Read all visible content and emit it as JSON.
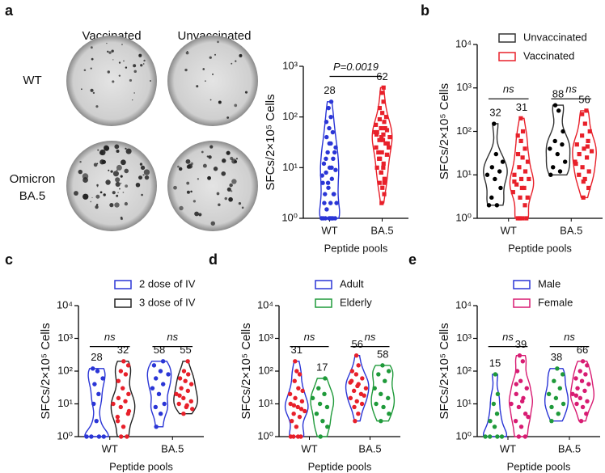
{
  "panel_labels": [
    "a",
    "b",
    "c",
    "d",
    "e"
  ],
  "images": {
    "columns": [
      "Vaccinated",
      "Unvaccinated"
    ],
    "rows": [
      [
        "WT"
      ],
      [
        "Omicron",
        "BA.5"
      ]
    ]
  },
  "chart_data": [
    {
      "type": "violin",
      "y_label": "SFCs/2×10⁵ Cells",
      "x_label": "Peptide pools",
      "categories": [
        "WT",
        "BA.5"
      ],
      "ylim": [
        1,
        1000
      ],
      "log_scale": true,
      "yticks": [
        {
          "value": 1,
          "label": "10⁰"
        },
        {
          "value": 10,
          "label": "10¹"
        },
        {
          "value": 100,
          "label": "10²"
        },
        {
          "value": 1000,
          "label": "10³"
        }
      ],
      "comparison_labels": [
        "P=0.0019"
      ],
      "series": [
        {
          "color": "#2a35d6",
          "point_color": "#2a35d6",
          "marker": "circle",
          "labels": [
            28,
            null
          ],
          "values": [
            [
              1,
              1,
              1,
              1,
              1,
              1,
              1,
              1.5,
              2,
              2,
              3,
              3,
              4,
              5,
              6,
              8,
              9,
              10,
              12,
              15,
              20,
              25,
              30,
              40,
              50,
              60,
              80,
              100,
              150,
              200,
              1,
              2,
              3,
              5,
              7,
              10,
              15,
              20,
              30
            ],
            null
          ]
        },
        {
          "color": "#e8202a",
          "point_color": "#e8202a",
          "marker": "square",
          "labels": [
            null,
            62
          ],
          "values": [
            null,
            [
              2,
              3,
              4,
              5,
              6,
              8,
              10,
              12,
              15,
              18,
              20,
              25,
              30,
              35,
              40,
              45,
              50,
              55,
              60,
              70,
              80,
              90,
              100,
              120,
              150,
              200,
              300,
              380,
              10,
              20,
              30,
              40,
              50,
              60,
              15,
              25,
              35,
              45,
              5,
              8
            ]
          ]
        }
      ]
    },
    {
      "type": "violin",
      "y_label": "SFCs/2×10⁵ Cells",
      "x_label": "Peptide pools",
      "categories": [
        "WT",
        "BA.5"
      ],
      "ylim": [
        1,
        10000
      ],
      "log_scale": true,
      "yticks": [
        {
          "value": 1,
          "label": "10⁰"
        },
        {
          "value": 10,
          "label": "10¹"
        },
        {
          "value": 100,
          "label": "10²"
        },
        {
          "value": 1000,
          "label": "10³"
        },
        {
          "value": 10000,
          "label": "10⁴"
        }
      ],
      "comparison_labels": [
        "ns",
        "ns"
      ],
      "series": [
        {
          "name": "Unvaccinated",
          "color": "#333333",
          "point_color": "#000000",
          "marker": "circle",
          "labels": [
            32,
            88
          ],
          "values": [
            [
              2,
              2,
              3,
              5,
              8,
              10,
              12,
              15,
              20,
              30,
              150
            ],
            [
              10,
              12,
              15,
              20,
              30,
              40,
              50,
              60,
              100,
              300,
              400
            ]
          ]
        },
        {
          "name": "Vaccinated",
          "color": "#e8202a",
          "point_color": "#e8202a",
          "marker": "square",
          "labels": [
            31,
            56
          ],
          "values": [
            [
              1,
              1,
              1,
              1,
              2,
              3,
              4,
              5,
              6,
              8,
              8,
              10,
              12,
              15,
              20,
              25,
              30,
              40,
              60,
              80,
              100,
              200,
              3,
              5,
              7
            ],
            [
              3,
              5,
              8,
              10,
              12,
              15,
              20,
              25,
              30,
              35,
              40,
              50,
              60,
              80,
              100,
              150,
              250,
              300,
              7,
              18,
              45
            ]
          ]
        }
      ]
    },
    {
      "type": "violin",
      "y_label": "SFCs/2×10⁵ Cells",
      "x_label": "Peptide pools",
      "categories": [
        "WT",
        "BA.5"
      ],
      "ylim": [
        1,
        10000
      ],
      "log_scale": true,
      "yticks": [
        {
          "value": 1,
          "label": "10⁰"
        },
        {
          "value": 10,
          "label": "10¹"
        },
        {
          "value": 100,
          "label": "10²"
        },
        {
          "value": 1000,
          "label": "10³"
        },
        {
          "value": 10000,
          "label": "10⁴"
        }
      ],
      "comparison_labels": [
        "ns",
        "ns"
      ],
      "series": [
        {
          "name": "2 dose of IV",
          "color": "#2a35d6",
          "point_color": "#2a35d6",
          "marker": "circle",
          "labels": [
            28,
            58
          ],
          "values": [
            [
              1,
              1,
              1,
              1,
              3,
              10,
              20,
              40,
              60,
              100,
              120
            ],
            [
              2,
              5,
              8,
              10,
              20,
              30,
              40,
              60,
              80,
              100,
              150,
              200
            ]
          ]
        },
        {
          "name": "3 dose of IV",
          "color": "#222222",
          "point_color": "#e8202a",
          "marker": "circle",
          "labels": [
            32,
            55
          ],
          "values": [
            [
              1,
              1,
              2,
              3,
              5,
              8,
              10,
              12,
              15,
              20,
              30,
              50,
              80,
              100,
              150,
              200,
              4,
              6
            ],
            [
              5,
              7,
              8,
              10,
              12,
              15,
              20,
              25,
              30,
              40,
              50,
              60,
              80,
              100,
              200,
              9,
              18
            ]
          ]
        }
      ]
    },
    {
      "type": "violin",
      "y_label": "SFCs/2×10⁵ Cells",
      "x_label": "Peptide pools",
      "categories": [
        "WT",
        "BA.5"
      ],
      "ylim": [
        1,
        10000
      ],
      "log_scale": true,
      "yticks": [
        {
          "value": 1,
          "label": "10⁰"
        },
        {
          "value": 10,
          "label": "10¹"
        },
        {
          "value": 100,
          "label": "10²"
        },
        {
          "value": 1000,
          "label": "10³"
        },
        {
          "value": 10000,
          "label": "10⁴"
        }
      ],
      "comparison_labels": [
        "ns",
        "ns"
      ],
      "series": [
        {
          "name": "Adult",
          "color": "#2a35d6",
          "point_color": "#e8202a",
          "marker": "circle",
          "labels": [
            31,
            56
          ],
          "values": [
            [
              1,
              1,
              1,
              1,
              2,
              3,
              4,
              5,
              6,
              8,
              10,
              12,
              15,
              20,
              30,
              50,
              80,
              100,
              200,
              7,
              9,
              25
            ],
            [
              3,
              5,
              8,
              10,
              12,
              15,
              20,
              25,
              30,
              40,
              50,
              60,
              80,
              100,
              150,
              300,
              18,
              35,
              45
            ]
          ]
        },
        {
          "name": "Elderly",
          "color": "#1f9a3a",
          "point_color": "#1f9a3a",
          "marker": "circle",
          "labels": [
            17,
            58
          ],
          "values": [
            [
              1,
              2,
              3,
              5,
              8,
              10,
              15,
              20,
              30,
              60
            ],
            [
              3,
              5,
              8,
              10,
              15,
              20,
              30,
              50,
              80,
              100,
              150
            ]
          ]
        }
      ]
    },
    {
      "type": "violin",
      "y_label": "SFCs/2×10⁵ Cells",
      "x_label": "Peptide pools",
      "categories": [
        "WT",
        "BA.5"
      ],
      "ylim": [
        1,
        10000
      ],
      "log_scale": true,
      "yticks": [
        {
          "value": 1,
          "label": "10⁰"
        },
        {
          "value": 10,
          "label": "10¹"
        },
        {
          "value": 100,
          "label": "10²"
        },
        {
          "value": 1000,
          "label": "10³"
        },
        {
          "value": 10000,
          "label": "10⁴"
        }
      ],
      "comparison_labels": [
        "ns",
        "ns"
      ],
      "series": [
        {
          "name": "Male",
          "color": "#2a35d6",
          "point_color": "#1f9a3a",
          "marker": "circle",
          "labels": [
            15,
            38
          ],
          "values": [
            [
              1,
              1,
              1,
              1,
              2,
              3,
              5,
              10,
              20,
              80
            ],
            [
              3,
              5,
              8,
              10,
              15,
              20,
              30,
              50,
              80,
              120
            ]
          ]
        },
        {
          "name": "Female",
          "color": "#d81b72",
          "point_color": "#d81b72",
          "marker": "circle",
          "labels": [
            39,
            66
          ],
          "values": [
            [
              1,
              1,
              2,
              3,
              5,
              8,
              10,
              15,
              20,
              30,
              50,
              100,
              200,
              300,
              4,
              12,
              40
            ],
            [
              3,
              5,
              8,
              10,
              12,
              15,
              20,
              25,
              30,
              40,
              50,
              60,
              80,
              100,
              150,
              200,
              18
            ]
          ]
        }
      ]
    }
  ]
}
